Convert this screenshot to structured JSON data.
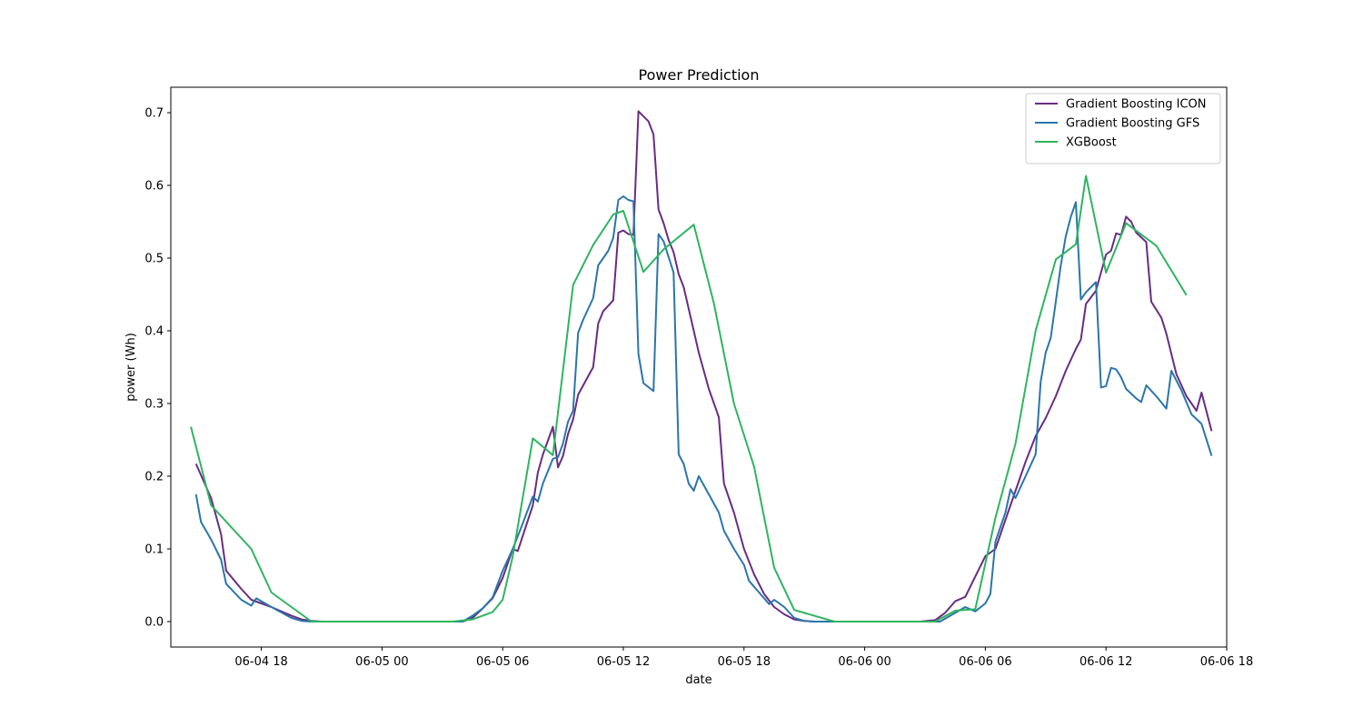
{
  "chart_data": {
    "type": "line",
    "title": "Power Prediction",
    "xlabel": "date",
    "ylabel": "power (Wh)",
    "x_axis": {
      "type": "datetime",
      "range": [
        "2024-06-04T13:30",
        "2024-06-06T18:00"
      ],
      "ticks": [
        {
          "t": "2024-06-04T18:00",
          "label": "06-04 18"
        },
        {
          "t": "2024-06-05T00:00",
          "label": "06-05 00"
        },
        {
          "t": "2024-06-05T06:00",
          "label": "06-05 06"
        },
        {
          "t": "2024-06-05T12:00",
          "label": "06-05 12"
        },
        {
          "t": "2024-06-05T18:00",
          "label": "06-05 18"
        },
        {
          "t": "2024-06-06T00:00",
          "label": "06-06 00"
        },
        {
          "t": "2024-06-06T06:00",
          "label": "06-06 06"
        },
        {
          "t": "2024-06-06T12:00",
          "label": "06-06 12"
        },
        {
          "t": "2024-06-06T18:00",
          "label": "06-06 18"
        }
      ]
    },
    "y_axis": {
      "range": [
        -0.035,
        0.735
      ],
      "ticks": [
        0.0,
        0.1,
        0.2,
        0.3,
        0.4,
        0.5,
        0.6,
        0.7
      ],
      "tick_labels": [
        "0.0",
        "0.1",
        "0.2",
        "0.3",
        "0.4",
        "0.5",
        "0.6",
        "0.7"
      ]
    },
    "grid": false,
    "legend": {
      "position": "top-right"
    },
    "series": [
      {
        "name": "Gradient Boosting ICON",
        "color": "#6a2c82",
        "points": [
          [
            "2024-06-04T14:45",
            0.217
          ],
          [
            "2024-06-04T15:30",
            0.17
          ],
          [
            "2024-06-04T16:00",
            0.12
          ],
          [
            "2024-06-04T16:15",
            0.07
          ],
          [
            "2024-06-04T17:00",
            0.045
          ],
          [
            "2024-06-04T17:30",
            0.03
          ],
          [
            "2024-06-04T18:30",
            0.02
          ],
          [
            "2024-06-04T19:30",
            0.008
          ],
          [
            "2024-06-04T20:00",
            0.003
          ],
          [
            "2024-06-04T20:30",
            0.001
          ],
          [
            "2024-06-04T21:00",
            0.0
          ],
          [
            "2024-06-05T04:00",
            0.0
          ],
          [
            "2024-06-05T04:30",
            0.005
          ],
          [
            "2024-06-05T05:00",
            0.018
          ],
          [
            "2024-06-05T05:30",
            0.032
          ],
          [
            "2024-06-05T06:00",
            0.06
          ],
          [
            "2024-06-05T06:30",
            0.1
          ],
          [
            "2024-06-05T06:45",
            0.097
          ],
          [
            "2024-06-05T07:30",
            0.16
          ],
          [
            "2024-06-05T07:45",
            0.205
          ],
          [
            "2024-06-05T08:00",
            0.23
          ],
          [
            "2024-06-05T08:30",
            0.268
          ],
          [
            "2024-06-05T08:45",
            0.212
          ],
          [
            "2024-06-05T09:00",
            0.228
          ],
          [
            "2024-06-05T09:15",
            0.258
          ],
          [
            "2024-06-05T09:30",
            0.278
          ],
          [
            "2024-06-05T09:45",
            0.312
          ],
          [
            "2024-06-05T10:30",
            0.35
          ],
          [
            "2024-06-05T10:45",
            0.41
          ],
          [
            "2024-06-05T11:00",
            0.427
          ],
          [
            "2024-06-05T11:30",
            0.442
          ],
          [
            "2024-06-05T11:45",
            0.535
          ],
          [
            "2024-06-05T12:00",
            0.538
          ],
          [
            "2024-06-05T12:15",
            0.533
          ],
          [
            "2024-06-05T12:30",
            0.532
          ],
          [
            "2024-06-05T12:45",
            0.702
          ],
          [
            "2024-06-05T13:15",
            0.688
          ],
          [
            "2024-06-05T13:30",
            0.67
          ],
          [
            "2024-06-05T13:45",
            0.567
          ],
          [
            "2024-06-05T14:00",
            0.548
          ],
          [
            "2024-06-05T14:15",
            0.525
          ],
          [
            "2024-06-05T14:30",
            0.508
          ],
          [
            "2024-06-05T14:45",
            0.478
          ],
          [
            "2024-06-05T15:00",
            0.46
          ],
          [
            "2024-06-05T15:30",
            0.4
          ],
          [
            "2024-06-05T15:45",
            0.37
          ],
          [
            "2024-06-05T16:15",
            0.32
          ],
          [
            "2024-06-05T16:45",
            0.281
          ],
          [
            "2024-06-05T17:00",
            0.19
          ],
          [
            "2024-06-05T17:30",
            0.15
          ],
          [
            "2024-06-05T18:00",
            0.1
          ],
          [
            "2024-06-05T18:30",
            0.065
          ],
          [
            "2024-06-05T19:00",
            0.038
          ],
          [
            "2024-06-05T19:30",
            0.02
          ],
          [
            "2024-06-05T20:00",
            0.01
          ],
          [
            "2024-06-05T20:30",
            0.003
          ],
          [
            "2024-06-05T21:00",
            0.001
          ],
          [
            "2024-06-05T21:30",
            0.0
          ],
          [
            "2024-06-06T02:45",
            0.0
          ],
          [
            "2024-06-06T03:30",
            0.002
          ],
          [
            "2024-06-06T04:00",
            0.012
          ],
          [
            "2024-06-06T04:30",
            0.028
          ],
          [
            "2024-06-06T05:00",
            0.034
          ],
          [
            "2024-06-06T05:30",
            0.062
          ],
          [
            "2024-06-06T06:00",
            0.09
          ],
          [
            "2024-06-06T06:30",
            0.1
          ],
          [
            "2024-06-06T07:00",
            0.14
          ],
          [
            "2024-06-06T07:30",
            0.18
          ],
          [
            "2024-06-06T08:00",
            0.22
          ],
          [
            "2024-06-06T08:30",
            0.255
          ],
          [
            "2024-06-06T09:00",
            0.28
          ],
          [
            "2024-06-06T09:30",
            0.31
          ],
          [
            "2024-06-06T10:00",
            0.345
          ],
          [
            "2024-06-06T10:30",
            0.375
          ],
          [
            "2024-06-06T10:45",
            0.388
          ],
          [
            "2024-06-06T11:00",
            0.437
          ],
          [
            "2024-06-06T11:30",
            0.455
          ],
          [
            "2024-06-06T12:00",
            0.505
          ],
          [
            "2024-06-06T12:15",
            0.51
          ],
          [
            "2024-06-06T12:30",
            0.534
          ],
          [
            "2024-06-06T12:45",
            0.532
          ],
          [
            "2024-06-06T13:00",
            0.557
          ],
          [
            "2024-06-06T13:15",
            0.55
          ],
          [
            "2024-06-06T13:30",
            0.535
          ],
          [
            "2024-06-06T14:00",
            0.522
          ],
          [
            "2024-06-06T14:15",
            0.44
          ],
          [
            "2024-06-06T14:45",
            0.418
          ],
          [
            "2024-06-06T15:00",
            0.396
          ],
          [
            "2024-06-06T15:30",
            0.34
          ],
          [
            "2024-06-06T16:00",
            0.31
          ],
          [
            "2024-06-06T16:30",
            0.29
          ],
          [
            "2024-06-06T16:45",
            0.315
          ],
          [
            "2024-06-06T17:15",
            0.262
          ]
        ]
      },
      {
        "name": "Gradient Boosting GFS",
        "color": "#2a76aa",
        "points": [
          [
            "2024-06-04T14:45",
            0.175
          ],
          [
            "2024-06-04T15:00",
            0.137
          ],
          [
            "2024-06-04T15:30",
            0.113
          ],
          [
            "2024-06-04T16:00",
            0.085
          ],
          [
            "2024-06-04T16:15",
            0.052
          ],
          [
            "2024-06-04T17:00",
            0.03
          ],
          [
            "2024-06-04T17:30",
            0.022
          ],
          [
            "2024-06-04T17:45",
            0.032
          ],
          [
            "2024-06-04T18:30",
            0.02
          ],
          [
            "2024-06-04T19:30",
            0.005
          ],
          [
            "2024-06-04T20:00",
            0.001
          ],
          [
            "2024-06-04T20:30",
            0.0
          ],
          [
            "2024-06-05T04:00",
            0.0
          ],
          [
            "2024-06-05T04:30",
            0.008
          ],
          [
            "2024-06-05T05:00",
            0.018
          ],
          [
            "2024-06-05T05:30",
            0.033
          ],
          [
            "2024-06-05T06:00",
            0.07
          ],
          [
            "2024-06-05T06:30",
            0.1
          ],
          [
            "2024-06-05T07:00",
            0.135
          ],
          [
            "2024-06-05T07:30",
            0.172
          ],
          [
            "2024-06-05T07:45",
            0.165
          ],
          [
            "2024-06-05T08:00",
            0.19
          ],
          [
            "2024-06-05T08:30",
            0.224
          ],
          [
            "2024-06-05T08:45",
            0.226
          ],
          [
            "2024-06-05T09:00",
            0.245
          ],
          [
            "2024-06-05T09:15",
            0.275
          ],
          [
            "2024-06-05T09:30",
            0.29
          ],
          [
            "2024-06-05T09:45",
            0.397
          ],
          [
            "2024-06-05T10:00",
            0.415
          ],
          [
            "2024-06-05T10:30",
            0.445
          ],
          [
            "2024-06-05T10:45",
            0.49
          ],
          [
            "2024-06-05T11:00",
            0.5
          ],
          [
            "2024-06-05T11:15",
            0.51
          ],
          [
            "2024-06-05T11:30",
            0.528
          ],
          [
            "2024-06-05T11:45",
            0.58
          ],
          [
            "2024-06-05T12:00",
            0.585
          ],
          [
            "2024-06-05T12:15",
            0.58
          ],
          [
            "2024-06-05T12:30",
            0.578
          ],
          [
            "2024-06-05T12:45",
            0.368
          ],
          [
            "2024-06-05T13:00",
            0.328
          ],
          [
            "2024-06-05T13:30",
            0.317
          ],
          [
            "2024-06-05T13:45",
            0.533
          ],
          [
            "2024-06-05T14:00",
            0.523
          ],
          [
            "2024-06-05T14:30",
            0.48
          ],
          [
            "2024-06-05T14:45",
            0.23
          ],
          [
            "2024-06-05T15:00",
            0.217
          ],
          [
            "2024-06-05T15:15",
            0.19
          ],
          [
            "2024-06-05T15:30",
            0.18
          ],
          [
            "2024-06-05T15:45",
            0.2
          ],
          [
            "2024-06-05T16:15",
            0.175
          ],
          [
            "2024-06-05T16:45",
            0.15
          ],
          [
            "2024-06-05T17:00",
            0.125
          ],
          [
            "2024-06-05T17:30",
            0.1
          ],
          [
            "2024-06-05T18:00",
            0.078
          ],
          [
            "2024-06-05T18:15",
            0.056
          ],
          [
            "2024-06-05T18:45",
            0.04
          ],
          [
            "2024-06-05T19:15",
            0.024
          ],
          [
            "2024-06-05T19:30",
            0.03
          ],
          [
            "2024-06-05T20:00",
            0.02
          ],
          [
            "2024-06-05T20:30",
            0.005
          ],
          [
            "2024-06-05T21:00",
            0.001
          ],
          [
            "2024-06-05T21:30",
            0.0
          ],
          [
            "2024-06-06T02:45",
            0.0
          ],
          [
            "2024-06-06T03:45",
            0.0
          ],
          [
            "2024-06-06T04:00",
            0.004
          ],
          [
            "2024-06-06T05:00",
            0.02
          ],
          [
            "2024-06-06T05:30",
            0.014
          ],
          [
            "2024-06-06T06:00",
            0.025
          ],
          [
            "2024-06-06T06:15",
            0.038
          ],
          [
            "2024-06-06T06:30",
            0.11
          ],
          [
            "2024-06-06T07:00",
            0.15
          ],
          [
            "2024-06-06T07:15",
            0.182
          ],
          [
            "2024-06-06T07:30",
            0.17
          ],
          [
            "2024-06-06T08:00",
            0.2
          ],
          [
            "2024-06-06T08:30",
            0.23
          ],
          [
            "2024-06-06T08:45",
            0.33
          ],
          [
            "2024-06-06T09:00",
            0.37
          ],
          [
            "2024-06-06T09:15",
            0.39
          ],
          [
            "2024-06-06T09:30",
            0.44
          ],
          [
            "2024-06-06T09:45",
            0.49
          ],
          [
            "2024-06-06T10:00",
            0.53
          ],
          [
            "2024-06-06T10:15",
            0.557
          ],
          [
            "2024-06-06T10:30",
            0.577
          ],
          [
            "2024-06-06T10:45",
            0.443
          ],
          [
            "2024-06-06T11:00",
            0.453
          ],
          [
            "2024-06-06T11:15",
            0.46
          ],
          [
            "2024-06-06T11:30",
            0.467
          ],
          [
            "2024-06-06T11:45",
            0.322
          ],
          [
            "2024-06-06T12:00",
            0.324
          ],
          [
            "2024-06-06T12:15",
            0.349
          ],
          [
            "2024-06-06T12:30",
            0.347
          ],
          [
            "2024-06-06T12:45",
            0.336
          ],
          [
            "2024-06-06T13:00",
            0.32
          ],
          [
            "2024-06-06T13:30",
            0.307
          ],
          [
            "2024-06-06T13:45",
            0.302
          ],
          [
            "2024-06-06T14:00",
            0.325
          ],
          [
            "2024-06-06T14:30",
            0.31
          ],
          [
            "2024-06-06T15:00",
            0.293
          ],
          [
            "2024-06-06T15:15",
            0.345
          ],
          [
            "2024-06-06T15:45",
            0.318
          ],
          [
            "2024-06-06T16:15",
            0.285
          ],
          [
            "2024-06-06T16:45",
            0.272
          ],
          [
            "2024-06-06T17:15",
            0.228
          ]
        ]
      },
      {
        "name": "XGBoost",
        "color": "#2db560",
        "points": [
          [
            "2024-06-04T14:30",
            0.268
          ],
          [
            "2024-06-04T15:30",
            0.16
          ],
          [
            "2024-06-04T17:30",
            0.1
          ],
          [
            "2024-06-04T18:30",
            0.04
          ],
          [
            "2024-06-04T20:30",
            0.0
          ],
          [
            "2024-06-05T03:30",
            0.0
          ],
          [
            "2024-06-05T04:30",
            0.003
          ],
          [
            "2024-06-05T05:30",
            0.013
          ],
          [
            "2024-06-05T06:00",
            0.03
          ],
          [
            "2024-06-05T06:30",
            0.09
          ],
          [
            "2024-06-05T07:30",
            0.252
          ],
          [
            "2024-06-05T08:30",
            0.229
          ],
          [
            "2024-06-05T09:30",
            0.463
          ],
          [
            "2024-06-05T10:30",
            0.518
          ],
          [
            "2024-06-05T11:30",
            0.56
          ],
          [
            "2024-06-05T12:00",
            0.565
          ],
          [
            "2024-06-05T13:00",
            0.481
          ],
          [
            "2024-06-05T14:00",
            0.512
          ],
          [
            "2024-06-05T15:30",
            0.546
          ],
          [
            "2024-06-05T16:30",
            0.438
          ],
          [
            "2024-06-05T17:30",
            0.3
          ],
          [
            "2024-06-05T18:30",
            0.213
          ],
          [
            "2024-06-05T19:30",
            0.074
          ],
          [
            "2024-06-05T20:30",
            0.016
          ],
          [
            "2024-06-05T22:30",
            0.0
          ],
          [
            "2024-06-06T01:30",
            0.0
          ],
          [
            "2024-06-06T03:30",
            0.0
          ],
          [
            "2024-06-06T04:30",
            0.015
          ],
          [
            "2024-06-06T05:30",
            0.017
          ],
          [
            "2024-06-06T06:30",
            0.143
          ],
          [
            "2024-06-06T07:30",
            0.245
          ],
          [
            "2024-06-06T08:30",
            0.4
          ],
          [
            "2024-06-06T09:30",
            0.498
          ],
          [
            "2024-06-06T10:30",
            0.519
          ],
          [
            "2024-06-06T11:00",
            0.613
          ],
          [
            "2024-06-06T12:00",
            0.48
          ],
          [
            "2024-06-06T13:00",
            0.548
          ],
          [
            "2024-06-06T14:30",
            0.517
          ],
          [
            "2024-06-06T16:00",
            0.449
          ]
        ]
      }
    ]
  }
}
